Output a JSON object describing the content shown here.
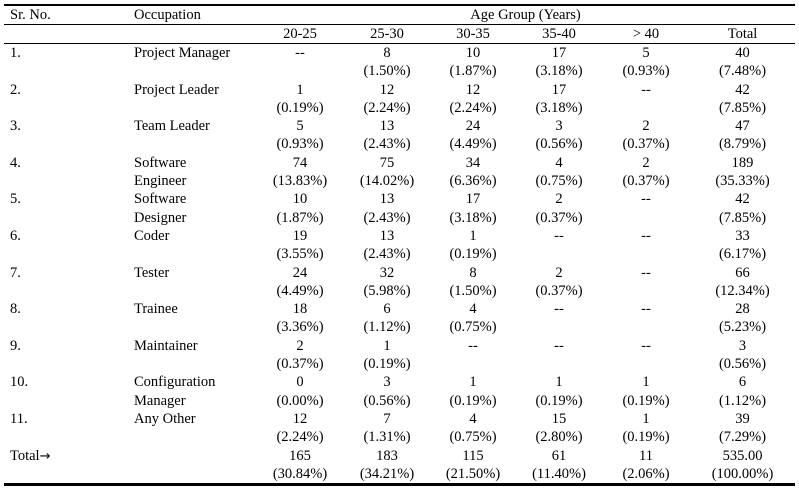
{
  "table": {
    "header": {
      "sr_no": "Sr. No.",
      "occupation": "Occupation",
      "age_group": "Age Group (Years)",
      "columns": [
        "20-25",
        "25-30",
        "30-35",
        "35-40",
        "> 40",
        "Total"
      ]
    },
    "rows": [
      {
        "sr": "1.",
        "occ": [
          "Project Manager",
          ""
        ],
        "cells": [
          [
            "--",
            ""
          ],
          [
            "8",
            "(1.50%)"
          ],
          [
            "10",
            "(1.87%)"
          ],
          [
            "17",
            "(3.18%)"
          ],
          [
            "5",
            "(0.93%)"
          ],
          [
            "40",
            "(7.48%)"
          ]
        ]
      },
      {
        "sr": "2.",
        "occ": [
          "Project Leader",
          ""
        ],
        "cells": [
          [
            "1",
            "(0.19%)"
          ],
          [
            "12",
            "(2.24%)"
          ],
          [
            "12",
            "(2.24%)"
          ],
          [
            "17",
            "(3.18%)"
          ],
          [
            "--",
            ""
          ],
          [
            "42",
            "(7.85%)"
          ]
        ]
      },
      {
        "sr": "3.",
        "occ": [
          "Team Leader",
          ""
        ],
        "cells": [
          [
            "5",
            "(0.93%)"
          ],
          [
            "13",
            "(2.43%)"
          ],
          [
            "24",
            "(4.49%)"
          ],
          [
            "3",
            "(0.56%)"
          ],
          [
            "2",
            "(0.37%)"
          ],
          [
            "47",
            "(8.79%)"
          ]
        ]
      },
      {
        "sr": "4.",
        "occ": [
          "Software",
          "Engineer"
        ],
        "cells": [
          [
            "74",
            "(13.83%)"
          ],
          [
            "75",
            "(14.02%)"
          ],
          [
            "34",
            "(6.36%)"
          ],
          [
            "4",
            "(0.75%)"
          ],
          [
            "2",
            "(0.37%)"
          ],
          [
            "189",
            "(35.33%)"
          ]
        ]
      },
      {
        "sr": "5.",
        "occ": [
          "Software",
          "Designer"
        ],
        "cells": [
          [
            "10",
            "(1.87%)"
          ],
          [
            "13",
            "(2.43%)"
          ],
          [
            "17",
            "(3.18%)"
          ],
          [
            "2",
            "(0.37%)"
          ],
          [
            "--",
            ""
          ],
          [
            "42",
            "(7.85%)"
          ]
        ]
      },
      {
        "sr": "6.",
        "occ": [
          "Coder",
          ""
        ],
        "cells": [
          [
            "19",
            "(3.55%)"
          ],
          [
            "13",
            "(2.43%)"
          ],
          [
            "1",
            "(0.19%)"
          ],
          [
            "--",
            ""
          ],
          [
            "--",
            ""
          ],
          [
            "33",
            "(6.17%)"
          ]
        ]
      },
      {
        "sr": "7.",
        "occ": [
          "Tester",
          ""
        ],
        "cells": [
          [
            "24",
            "(4.49%)"
          ],
          [
            "32",
            "(5.98%)"
          ],
          [
            "8",
            "(1.50%)"
          ],
          [
            "2",
            "(0.37%)"
          ],
          [
            "--",
            ""
          ],
          [
            "66",
            "(12.34%)"
          ]
        ]
      },
      {
        "sr": "8.",
        "occ": [
          "Trainee",
          ""
        ],
        "cells": [
          [
            "18",
            "(3.36%)"
          ],
          [
            "6",
            "(1.12%)"
          ],
          [
            "4",
            "(0.75%)"
          ],
          [
            "--",
            ""
          ],
          [
            "--",
            ""
          ],
          [
            "28",
            "(5.23%)"
          ]
        ]
      },
      {
        "sr": "9.",
        "occ": [
          "Maintainer",
          ""
        ],
        "cells": [
          [
            "2",
            "(0.37%)"
          ],
          [
            "1",
            "(0.19%)"
          ],
          [
            "--",
            ""
          ],
          [
            "--",
            ""
          ],
          [
            "--",
            ""
          ],
          [
            "3",
            "(0.56%)"
          ]
        ]
      },
      {
        "sr": "10.",
        "occ": [
          "Configuration",
          "Manager"
        ],
        "cells": [
          [
            "0",
            "(0.00%)"
          ],
          [
            "3",
            "(0.56%)"
          ],
          [
            "1",
            "(0.19%)"
          ],
          [
            "1",
            "(0.19%)"
          ],
          [
            "1",
            "(0.19%)"
          ],
          [
            "6",
            "(1.12%)"
          ]
        ]
      },
      {
        "sr": "11.",
        "occ": [
          "Any Other",
          ""
        ],
        "cells": [
          [
            "12",
            "(2.24%)"
          ],
          [
            "7",
            "(1.31%)"
          ],
          [
            "4",
            "(0.75%)"
          ],
          [
            "15",
            "(2.80%)"
          ],
          [
            "1",
            "(0.19%)"
          ],
          [
            "39",
            "(7.29%)"
          ]
        ]
      }
    ],
    "total_row": {
      "label": "Total",
      "arrow": "→",
      "cells": [
        [
          "165",
          "(30.84%)"
        ],
        [
          "183",
          "(34.21%)"
        ],
        [
          "115",
          "(21.50%)"
        ],
        [
          "61",
          "(11.40%)"
        ],
        [
          "11",
          "(2.06%)"
        ],
        [
          "535.00",
          "(100.00%)"
        ]
      ]
    }
  }
}
